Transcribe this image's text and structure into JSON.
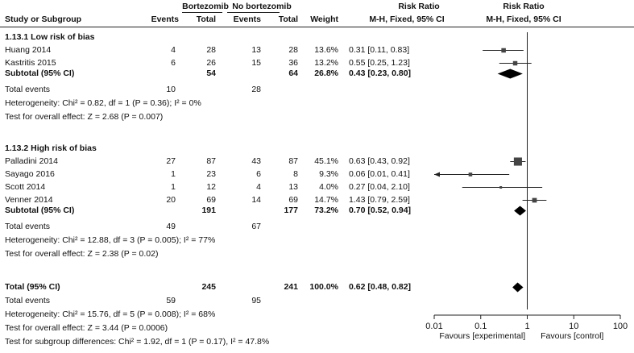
{
  "header": {
    "group1": "Bortezomib",
    "group2": "No bortezomib",
    "col_study": "Study or Subgroup",
    "col_events1": "Events",
    "col_total1": "Total",
    "col_events2": "Events",
    "col_total2": "Total",
    "col_weight": "Weight",
    "rr_title_left": "Risk Ratio",
    "rr_sub_left": "M-H, Fixed, 95% CI",
    "rr_title_right": "Risk Ratio",
    "rr_sub_right": "M-H, Fixed, 95% CI"
  },
  "subgroups": [
    {
      "title": "1.13.1 Low risk of bias",
      "studies": [
        {
          "name": "Huang 2014",
          "e1": "4",
          "t1": "28",
          "e2": "13",
          "t2": "28",
          "weight": "13.6%",
          "ci": "0.31 [0.11, 0.83]"
        },
        {
          "name": "Kastritis 2015",
          "e1": "6",
          "t1": "26",
          "e2": "15",
          "t2": "36",
          "weight": "13.2%",
          "ci": "0.55 [0.25, 1.23]"
        }
      ],
      "subtotal": {
        "label": "Subtotal (95% CI)",
        "t1": "54",
        "t2": "64",
        "weight": "26.8%",
        "ci": "0.43 [0.23, 0.80]"
      },
      "total_events": {
        "label": "Total events",
        "e1": "10",
        "e2": "28"
      },
      "heterogeneity": "Heterogeneity: Chi² = 0.82, df = 1 (P = 0.36); I² = 0%",
      "overall": "Test for overall effect: Z = 2.68 (P = 0.007)"
    },
    {
      "title": "1.13.2 High risk of bias",
      "studies": [
        {
          "name": "Palladini 2014",
          "e1": "27",
          "t1": "87",
          "e2": "43",
          "t2": "87",
          "weight": "45.1%",
          "ci": "0.63 [0.43, 0.92]"
        },
        {
          "name": "Sayago 2016",
          "e1": "1",
          "t1": "23",
          "e2": "6",
          "t2": "8",
          "weight": "9.3%",
          "ci": "0.06 [0.01, 0.41]"
        },
        {
          "name": "Scott 2014",
          "e1": "1",
          "t1": "12",
          "e2": "4",
          "t2": "13",
          "weight": "4.0%",
          "ci": "0.27 [0.04, 2.10]"
        },
        {
          "name": "Venner 2014",
          "e1": "20",
          "t1": "69",
          "e2": "14",
          "t2": "69",
          "weight": "14.7%",
          "ci": "1.43 [0.79, 2.59]"
        }
      ],
      "subtotal": {
        "label": "Subtotal (95% CI)",
        "t1": "191",
        "t2": "177",
        "weight": "73.2%",
        "ci": "0.70 [0.52, 0.94]"
      },
      "total_events": {
        "label": "Total events",
        "e1": "49",
        "e2": "67"
      },
      "heterogeneity": "Heterogeneity: Chi² = 12.88, df = 3 (P = 0.005); I² = 77%",
      "overall": "Test for overall effect: Z = 2.38 (P = 0.02)"
    }
  ],
  "total": {
    "label": "Total (95% CI)",
    "t1": "245",
    "t2": "241",
    "weight": "100.0%",
    "ci": "0.62 [0.48, 0.82]",
    "events_label": "Total events",
    "e1": "59",
    "e2": "95",
    "heterogeneity": "Heterogeneity: Chi² = 15.76, df = 5 (P = 0.008); I² = 68%",
    "overall": "Test for overall effect: Z = 3.44 (P = 0.0006)",
    "subgroup_diff": "Test for subgroup differences: Chi² = 1.92, df = 1 (P = 0.17), I² = 47.8%"
  },
  "chart_data": {
    "type": "forest",
    "x_scale": "log",
    "xlim": [
      0.01,
      100
    ],
    "x_ticks": [
      0.01,
      0.1,
      1,
      10,
      100
    ],
    "x_tick_labels": [
      "0.01",
      "0.1",
      "1",
      "10",
      "100"
    ],
    "favours_left": "Favours [experimental]",
    "favours_right": "Favours [control]",
    "studies": [
      {
        "name": "Huang 2014",
        "rr": 0.31,
        "lo": 0.11,
        "hi": 0.83,
        "weight": 13.6
      },
      {
        "name": "Kastritis 2015",
        "rr": 0.55,
        "lo": 0.25,
        "hi": 1.23,
        "weight": 13.2
      },
      {
        "name": "Palladini 2014",
        "rr": 0.63,
        "lo": 0.43,
        "hi": 0.92,
        "weight": 45.1
      },
      {
        "name": "Sayago 2016",
        "rr": 0.06,
        "lo": 0.01,
        "hi": 0.41,
        "weight": 9.3
      },
      {
        "name": "Scott 2014",
        "rr": 0.27,
        "lo": 0.04,
        "hi": 2.1,
        "weight": 4.0
      },
      {
        "name": "Venner 2014",
        "rr": 1.43,
        "lo": 0.79,
        "hi": 2.59,
        "weight": 14.7
      }
    ],
    "diamonds": [
      {
        "name": "Subtotal 1.13.1",
        "rr": 0.43,
        "lo": 0.23,
        "hi": 0.8
      },
      {
        "name": "Subtotal 1.13.2",
        "rr": 0.7,
        "lo": 0.52,
        "hi": 0.94
      },
      {
        "name": "Total",
        "rr": 0.62,
        "lo": 0.48,
        "hi": 0.82
      }
    ]
  }
}
